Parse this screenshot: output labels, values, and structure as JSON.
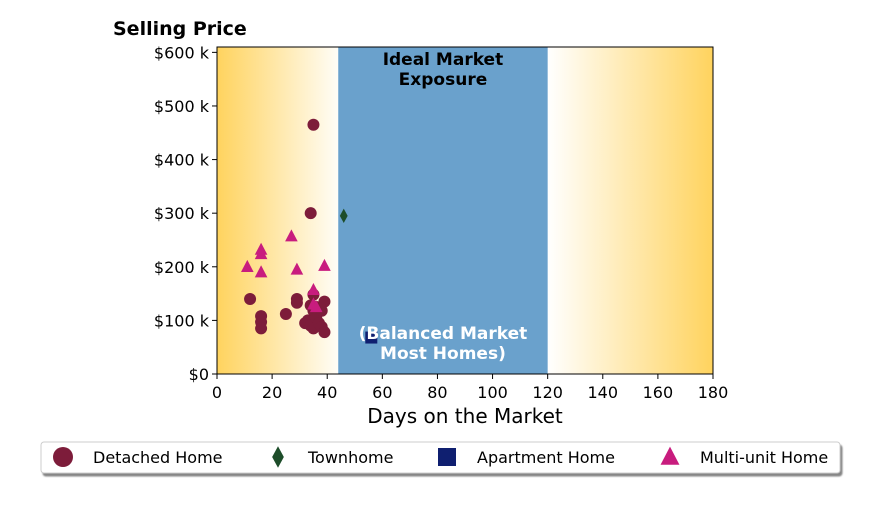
{
  "chart_data": {
    "type": "scatter",
    "title": "",
    "ylabel": "Selling Price",
    "xlabel": "Days on the Market",
    "xlim": [
      0,
      180
    ],
    "ylim": [
      0,
      610000
    ],
    "xticks": [
      {
        "value": 0,
        "label": "0"
      },
      {
        "value": 20,
        "label": "20"
      },
      {
        "value": 40,
        "label": "40"
      },
      {
        "value": 60,
        "label": "60"
      },
      {
        "value": 80,
        "label": "80"
      },
      {
        "value": 100,
        "label": "100"
      },
      {
        "value": 120,
        "label": "120"
      },
      {
        "value": 140,
        "label": "140"
      },
      {
        "value": 160,
        "label": "160"
      },
      {
        "value": 180,
        "label": "180"
      }
    ],
    "yticks": [
      {
        "value": 0,
        "label": "$0"
      },
      {
        "value": 100000,
        "label": "$100 k"
      },
      {
        "value": 200000,
        "label": "$200 k"
      },
      {
        "value": 300000,
        "label": "$300 k"
      },
      {
        "value": 400000,
        "label": "$400 k"
      },
      {
        "value": 500000,
        "label": "$500 k"
      },
      {
        "value": 600000,
        "label": "$600 k"
      }
    ],
    "ideal_zone": {
      "x_range": [
        44,
        120
      ],
      "title_line1": "Ideal Market",
      "title_line2": "Exposure",
      "note_line1": "(Balanced Market",
      "note_line2": "Most Homes)",
      "color": "#6aa1cc"
    },
    "gradient_color": "#ffd35e",
    "series": [
      {
        "name": "Detached Home",
        "marker": "circle",
        "color": "#7d1c3a",
        "points": [
          {
            "x": 35,
            "y": 465000
          },
          {
            "x": 34,
            "y": 300000
          },
          {
            "x": 12,
            "y": 140000
          },
          {
            "x": 16,
            "y": 108000
          },
          {
            "x": 16,
            "y": 97000
          },
          {
            "x": 16,
            "y": 85000
          },
          {
            "x": 25,
            "y": 112000
          },
          {
            "x": 29,
            "y": 140000
          },
          {
            "x": 29,
            "y": 133000
          },
          {
            "x": 32,
            "y": 95000
          },
          {
            "x": 33,
            "y": 100000
          },
          {
            "x": 34,
            "y": 90000
          },
          {
            "x": 35,
            "y": 85000
          },
          {
            "x": 35,
            "y": 148000
          },
          {
            "x": 35,
            "y": 118000
          },
          {
            "x": 36,
            "y": 125000
          },
          {
            "x": 36,
            "y": 105000
          },
          {
            "x": 37,
            "y": 95000
          },
          {
            "x": 38,
            "y": 118000
          },
          {
            "x": 38,
            "y": 88000
          },
          {
            "x": 39,
            "y": 135000
          },
          {
            "x": 39,
            "y": 78000
          },
          {
            "x": 34,
            "y": 128000
          }
        ]
      },
      {
        "name": "Townhome",
        "marker": "diamond",
        "color": "#1d4d2a",
        "points": [
          {
            "x": 46,
            "y": 295000
          }
        ]
      },
      {
        "name": "Apartment Home",
        "marker": "square",
        "color": "#0f1f70",
        "points": [
          {
            "x": 56,
            "y": 68000
          }
        ]
      },
      {
        "name": "Multi-unit Home",
        "marker": "triangle",
        "color": "#c81c7e",
        "points": [
          {
            "x": 11,
            "y": 200000
          },
          {
            "x": 16,
            "y": 232000
          },
          {
            "x": 16,
            "y": 224000
          },
          {
            "x": 16,
            "y": 190000
          },
          {
            "x": 27,
            "y": 257000
          },
          {
            "x": 29,
            "y": 195000
          },
          {
            "x": 35,
            "y": 157000
          },
          {
            "x": 35,
            "y": 130000
          },
          {
            "x": 36,
            "y": 125000
          },
          {
            "x": 39,
            "y": 202000
          }
        ]
      }
    ],
    "legend": "bottom"
  }
}
